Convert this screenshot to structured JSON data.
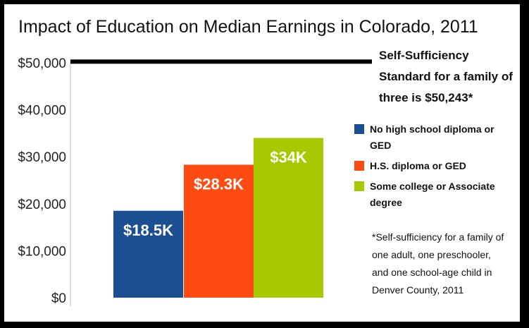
{
  "chart_data": {
    "type": "bar",
    "title": "Impact of Education on Median Earnings in Colorado, 2011",
    "categories": [
      "No high school diploma or GED",
      "H.S. diploma or GED",
      "Some college or Associate degree"
    ],
    "values": [
      18500,
      28300,
      34000
    ],
    "data_labels": [
      "$18.5K",
      "$28.3K",
      "$34K"
    ],
    "colors": [
      "#1b4f91",
      "#ff4a14",
      "#a8c800"
    ],
    "ylim": [
      0,
      50000
    ],
    "yticks": [
      0,
      10000,
      20000,
      30000,
      40000,
      50000
    ],
    "ytick_labels": [
      "$0",
      "$10,000",
      "$20,000",
      "$30,000",
      "$40,000",
      "$50,000"
    ],
    "reference_line": {
      "value": 50243,
      "color": "#000000",
      "label": "Self-Sufficiency Standard for a family of three is $50,243*"
    },
    "legend_position": "right",
    "footnote": "*Self-sufficiency for a family of one adult, one preschooler, and one school-age child in Denver County, 2011"
  }
}
